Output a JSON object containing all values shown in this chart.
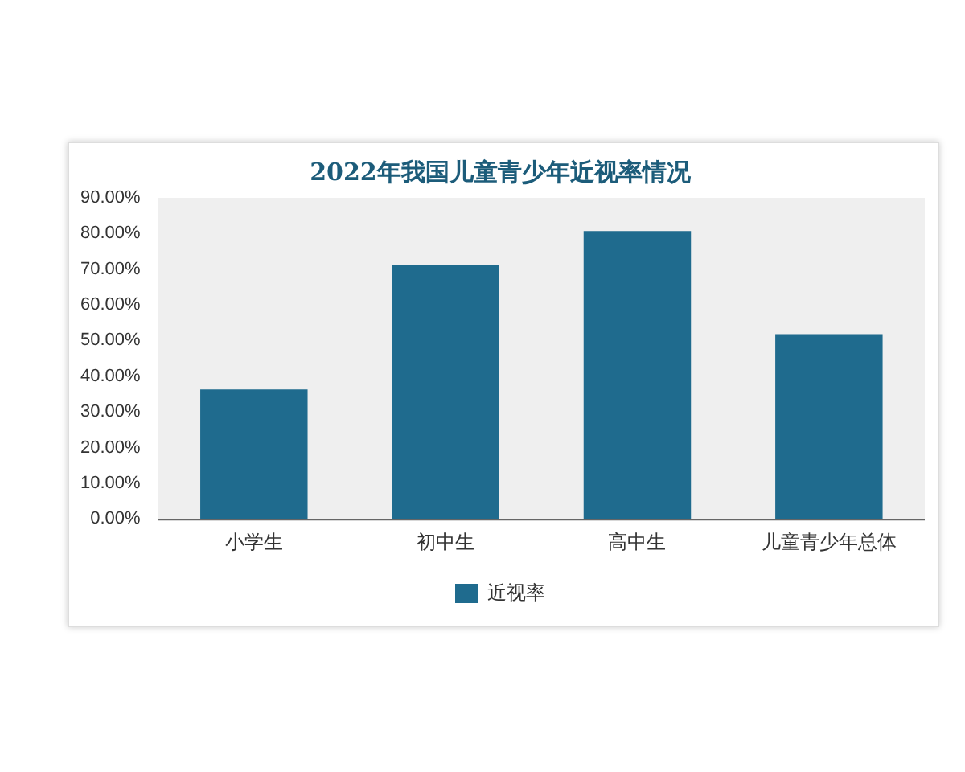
{
  "chart_data": {
    "type": "bar",
    "title": "2022年我国儿童青少年近视率情况",
    "categories": [
      "小学生",
      "初中生",
      "高中生",
      "儿童青少年总体"
    ],
    "series": [
      {
        "name": "近视率",
        "color": "#1f6b8e",
        "values": [
          36.3,
          71.2,
          80.7,
          51.8
        ]
      }
    ],
    "ylim": [
      0,
      90
    ],
    "yticks": [
      {
        "value": 0,
        "label": "0.00%"
      },
      {
        "value": 10,
        "label": "10.00%"
      },
      {
        "value": 20,
        "label": "20.00%"
      },
      {
        "value": 30,
        "label": "30.00%"
      },
      {
        "value": 40,
        "label": "40.00%"
      },
      {
        "value": 50,
        "label": "50.00%"
      },
      {
        "value": 60,
        "label": "60.00%"
      },
      {
        "value": 70,
        "label": "70.00%"
      },
      {
        "value": 80,
        "label": "80.00%"
      },
      {
        "value": 90,
        "label": "90.00%"
      }
    ],
    "grid": false,
    "legend": "bottom"
  }
}
